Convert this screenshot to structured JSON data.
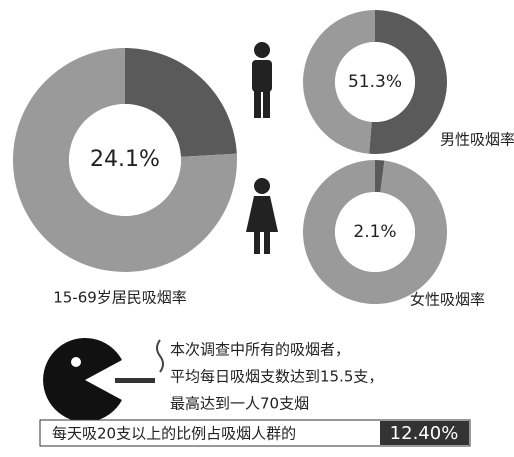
{
  "chart_data": [
    {
      "type": "donut",
      "title": "15-69岁居民吸烟率",
      "values": [
        24.1,
        75.9
      ],
      "value_labels": [
        "24.1%",
        null
      ],
      "colors": [
        "#5a5a5a",
        "#9a9a9a"
      ]
    },
    {
      "type": "donut",
      "title": "男性吸烟率",
      "values": [
        51.3,
        48.7
      ],
      "value_labels": [
        "51.3%",
        null
      ],
      "colors": [
        "#5a5a5a",
        "#9a9a9a"
      ]
    },
    {
      "type": "donut",
      "title": "女性吸烟率",
      "values": [
        2.1,
        97.9
      ],
      "value_labels": [
        "2.1%",
        null
      ],
      "colors": [
        "#5a5a5a",
        "#9a9a9a"
      ]
    }
  ],
  "notes": [
    "本次调查中所有的吸烟者，",
    "平均每日吸烟支数达到15.5支，",
    "最高达到一人70支烟"
  ],
  "highlight": {
    "text": "每天吸20支以上的比例占吸烟人群的",
    "value": "12.40%"
  }
}
